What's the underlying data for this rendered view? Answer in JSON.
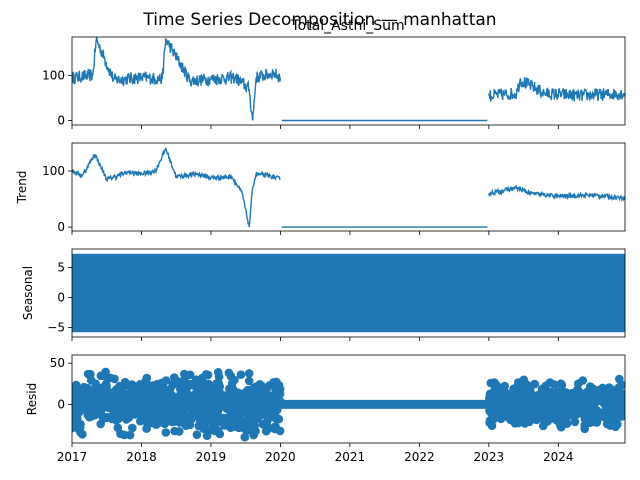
{
  "chart_data": {
    "type": "line",
    "title": "Time Series Decomposition — manhattan",
    "x_axis": {
      "range": [
        2017.0,
        2024.96
      ],
      "ticks": [
        2017,
        2018,
        2019,
        2020,
        2021,
        2022,
        2023,
        2024
      ],
      "tick_labels": [
        "2017",
        "2018",
        "2019",
        "2020",
        "2021",
        "2022",
        "2023",
        "2024"
      ]
    },
    "color": "#1f77b4",
    "panels": [
      {
        "id": "observed",
        "subtitle": "Total_Asthi_Sum",
        "ylabel": "",
        "ylim": [
          -10,
          185
        ],
        "yticks": [
          0,
          100
        ],
        "style": "line",
        "segments": [
          {
            "x": [
              2017.0,
              2017.3,
              2017.35,
              2017.6,
              2018.0,
              2018.3,
              2018.35,
              2018.7,
              2019.0,
              2019.35,
              2019.55,
              2019.6,
              2019.65,
              2019.9,
              2020.0
            ],
            "y": [
              95,
              100,
              180,
              90,
              95,
              92,
              180,
              88,
              92,
              95,
              70,
              0,
              95,
              105,
              95
            ]
          },
          {
            "x": [
              2020.02,
              2022.98
            ],
            "y": [
              0,
              0
            ]
          },
          {
            "x": [
              2023.0,
              2023.4,
              2023.45,
              2023.8,
              2024.3,
              2024.96
            ],
            "y": [
              55,
              60,
              90,
              60,
              55,
              60
            ]
          }
        ]
      },
      {
        "id": "trend",
        "subtitle": "",
        "ylabel": "Trend",
        "ylim": [
          -7,
          150
        ],
        "yticks": [
          0,
          100
        ],
        "style": "line",
        "segments": [
          {
            "x": [
              2017.0,
              2017.15,
              2017.33,
              2017.5,
              2017.8,
              2018.0,
              2018.2,
              2018.35,
              2018.5,
              2018.8,
              2019.0,
              2019.3,
              2019.45,
              2019.55,
              2019.6,
              2019.65,
              2019.9,
              2020.0
            ],
            "y": [
              100,
              92,
              130,
              85,
              98,
              95,
              100,
              140,
              90,
              95,
              88,
              90,
              60,
              0,
              70,
              95,
              90,
              85
            ]
          },
          {
            "x": [
              2020.02,
              2022.98
            ],
            "y": [
              0,
              0
            ]
          },
          {
            "x": [
              2023.0,
              2023.2,
              2023.4,
              2023.6,
              2024.0,
              2024.5,
              2024.96
            ],
            "y": [
              60,
              65,
              70,
              60,
              55,
              57,
              52
            ]
          }
        ]
      },
      {
        "id": "seasonal",
        "subtitle": "",
        "ylabel": "Seasonal",
        "ylim": [
          -6.6,
          8.1
        ],
        "yticks": [
          -5,
          0,
          5
        ],
        "style": "band",
        "band": {
          "x": [
            2017.0,
            2024.96
          ],
          "min": -5.8,
          "max": 7.3
        }
      },
      {
        "id": "resid",
        "subtitle": "",
        "ylabel": "Resid",
        "ylim": [
          -47,
          60
        ],
        "yticks": [
          0,
          50
        ],
        "style": "scatter",
        "scatter_regions": [
          {
            "x": [
              2017.0,
              2020.0
            ],
            "ymin": -40,
            "ymax": 55
          },
          {
            "x": [
              2023.0,
              2024.96
            ],
            "ymin": -30,
            "ymax": 40
          }
        ],
        "flat_region": {
          "x": [
            2020.0,
            2023.0
          ],
          "y": 0
        }
      }
    ]
  }
}
